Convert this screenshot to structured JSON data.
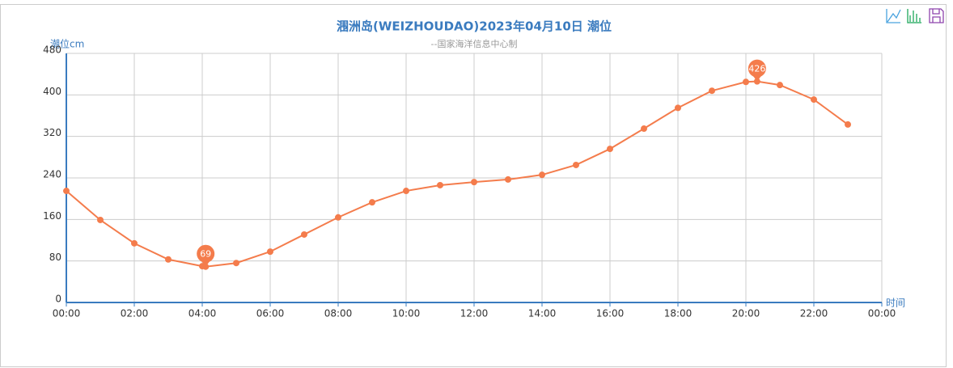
{
  "chart_data": {
    "type": "line",
    "title": "涠洲岛(WEIZHOUDAO)2023年04月10日 潮位",
    "subtitle": "--国家海洋信息中心制",
    "y_label": "潮位cm",
    "x_label": "时间",
    "x": [
      0,
      1,
      2,
      3,
      4,
      4.1,
      5,
      6,
      7,
      8,
      9,
      10,
      11,
      12,
      13,
      14,
      15,
      16,
      17,
      18,
      19,
      20,
      20.33,
      21,
      22,
      23
    ],
    "series": [
      {
        "name": "潮位",
        "color": "#f47c4c",
        "values": [
          215,
          159,
          114,
          83,
          70,
          69,
          76,
          98,
          131,
          164,
          193,
          215,
          226,
          232,
          237,
          246,
          265,
          296,
          335,
          375,
          408,
          425,
          426,
          419,
          391,
          343
        ]
      }
    ],
    "mark_points": [
      {
        "x": 4.1,
        "value": 69
      },
      {
        "x": 20.33,
        "value": 426
      }
    ],
    "xlim": [
      0,
      24
    ],
    "xticks": [
      {
        "value": 0,
        "label": "00:00"
      },
      {
        "value": 2,
        "label": "02:00"
      },
      {
        "value": 4,
        "label": "04:00"
      },
      {
        "value": 6,
        "label": "06:00"
      },
      {
        "value": 8,
        "label": "08:00"
      },
      {
        "value": 10,
        "label": "10:00"
      },
      {
        "value": 12,
        "label": "12:00"
      },
      {
        "value": 14,
        "label": "14:00"
      },
      {
        "value": 16,
        "label": "16:00"
      },
      {
        "value": 18,
        "label": "18:00"
      },
      {
        "value": 20,
        "label": "20:00"
      },
      {
        "value": 22,
        "label": "22:00"
      },
      {
        "value": 24,
        "label": "00:00"
      }
    ],
    "ylim": [
      0,
      480
    ],
    "yticks": [
      0,
      80,
      160,
      240,
      320,
      400,
      480
    ],
    "grid": true
  }
}
